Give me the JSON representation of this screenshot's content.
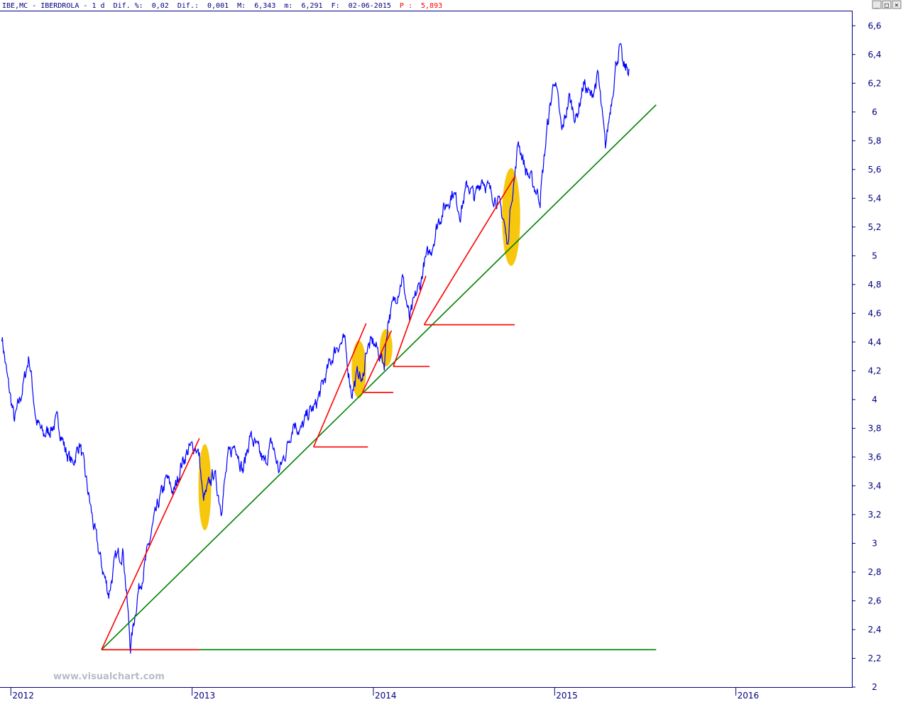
{
  "header": {
    "symbol": "IBE,MC",
    "name": "IBERDROLA",
    "period": "1 d",
    "pct_label": "Dif. %:",
    "pct_value": "0,02",
    "dif_label": "Dif.:",
    "dif_value": "0,001",
    "max_label": "M:",
    "max_value": "6,343",
    "min_label": "m:",
    "min_value": "6,291",
    "date_label": "F:",
    "date_value": "02-06-2015",
    "price_label": "P :",
    "price_value": "5,893",
    "text_color": "#000080",
    "price_color": "#ff0000"
  },
  "window_buttons": [
    "_",
    "□",
    "×"
  ],
  "watermark": "www.visualchart.com",
  "colors": {
    "price_line": "#0000ff",
    "support_line": "#008000",
    "trend_line": "#ff0000",
    "highlight": "#f5c400",
    "axis": "#000080"
  },
  "chart_data": {
    "type": "line",
    "title": "IBE,MC - IBERDROLA - 1 d",
    "x_axis": {
      "ticks": [
        "2012",
        "2013",
        "2014",
        "2015",
        "2016"
      ],
      "range": [
        2011.94,
        2016.64
      ]
    },
    "y_axis": {
      "ticks": [
        "2",
        "2,2",
        "2,4",
        "2,6",
        "2,8",
        "3",
        "3,2",
        "3,4",
        "3,6",
        "3,8",
        "4",
        "4,2",
        "4,4",
        "4,6",
        "4,8",
        "5",
        "5,2",
        "5,4",
        "5,6",
        "5,8",
        "6",
        "6,2",
        "6,4",
        "6,6"
      ],
      "tick_values": [
        2.0,
        2.2,
        2.4,
        2.6,
        2.8,
        3.0,
        3.2,
        3.4,
        3.6,
        3.8,
        4.0,
        4.2,
        4.4,
        4.6,
        4.8,
        5.0,
        5.2,
        5.4,
        5.6,
        5.8,
        6.0,
        6.2,
        6.4,
        6.6
      ],
      "range": [
        2.0,
        6.7
      ]
    },
    "series": [
      {
        "x": [
          2011.95,
          2011.98,
          2012.02,
          2012.06,
          2012.1,
          2012.14,
          2012.18,
          2012.22,
          2012.26,
          2012.3,
          2012.34,
          2012.38,
          2012.42,
          2012.46,
          2012.5,
          2012.54,
          2012.58,
          2012.62,
          2012.66,
          2012.7,
          2012.74,
          2012.78,
          2012.82,
          2012.86,
          2012.9,
          2012.94,
          2012.98,
          2013.02,
          2013.04,
          2013.06,
          2013.08,
          2013.12,
          2013.16,
          2013.2,
          2013.24,
          2013.28,
          2013.32,
          2013.36,
          2013.4,
          2013.44,
          2013.48,
          2013.52,
          2013.56,
          2013.6,
          2013.64,
          2013.68,
          2013.72,
          2013.76,
          2013.8,
          2013.84,
          2013.88,
          2013.92,
          2013.94,
          2013.96,
          2014.0,
          2014.04,
          2014.06,
          2014.08,
          2014.12,
          2014.16,
          2014.2,
          2014.24,
          2014.26,
          2014.28,
          2014.32,
          2014.36,
          2014.4,
          2014.44,
          2014.48,
          2014.52,
          2014.56,
          2014.6,
          2014.64,
          2014.68,
          2014.72,
          2014.74,
          2014.76,
          2014.78,
          2014.8,
          2014.84,
          2014.88,
          2014.92,
          2014.96,
          2015.0,
          2015.04,
          2015.08,
          2015.12,
          2015.16,
          2015.2,
          2015.24,
          2015.28,
          2015.32,
          2015.34,
          2015.36,
          2015.38,
          2015.41
        ],
        "values": [
          4.45,
          4.15,
          3.85,
          4.05,
          4.3,
          3.85,
          3.75,
          3.8,
          3.85,
          3.65,
          3.55,
          3.7,
          3.4,
          3.1,
          2.85,
          2.65,
          2.9,
          2.95,
          2.28,
          2.65,
          2.85,
          3.1,
          3.3,
          3.45,
          3.35,
          3.55,
          3.65,
          3.68,
          3.6,
          3.3,
          3.35,
          3.5,
          3.25,
          3.6,
          3.7,
          3.5,
          3.75,
          3.65,
          3.55,
          3.7,
          3.5,
          3.65,
          3.85,
          3.78,
          3.9,
          3.95,
          4.1,
          4.25,
          4.38,
          4.4,
          4.05,
          4.2,
          4.1,
          4.35,
          4.4,
          4.3,
          4.25,
          4.55,
          4.7,
          4.85,
          4.55,
          4.75,
          4.8,
          4.95,
          5.05,
          5.25,
          5.35,
          5.45,
          5.3,
          5.5,
          5.4,
          5.55,
          5.45,
          5.4,
          5.25,
          5.05,
          5.4,
          5.55,
          5.8,
          5.6,
          5.5,
          5.4,
          5.9,
          6.25,
          5.85,
          6.1,
          5.95,
          6.2,
          6.1,
          6.25,
          5.75,
          6.15,
          6.35,
          6.45,
          6.3,
          6.3
        ]
      }
    ],
    "trend_lines": [
      {
        "color": "green",
        "from": [
          2012.5,
          2.26
        ],
        "to": [
          2015.56,
          6.05
        ]
      },
      {
        "color": "green",
        "from": [
          2012.5,
          2.26
        ],
        "to": [
          2015.56,
          2.26
        ]
      },
      {
        "color": "red",
        "from": [
          2012.5,
          2.26
        ],
        "to": [
          2013.04,
          2.26
        ]
      },
      {
        "color": "red",
        "from": [
          2012.5,
          2.26
        ],
        "to": [
          2013.04,
          3.73
        ]
      },
      {
        "color": "red",
        "from": [
          2013.67,
          3.67
        ],
        "to": [
          2013.96,
          4.53
        ]
      },
      {
        "color": "red",
        "from": [
          2013.67,
          3.67
        ],
        "to": [
          2013.97,
          3.67
        ]
      },
      {
        "color": "red",
        "from": [
          2013.94,
          4.05
        ],
        "to": [
          2014.1,
          4.48
        ]
      },
      {
        "color": "red",
        "from": [
          2013.94,
          4.05
        ],
        "to": [
          2014.11,
          4.05
        ]
      },
      {
        "color": "red",
        "from": [
          2014.11,
          4.23
        ],
        "to": [
          2014.29,
          4.86
        ]
      },
      {
        "color": "red",
        "from": [
          2014.11,
          4.23
        ],
        "to": [
          2014.31,
          4.23
        ]
      },
      {
        "color": "red",
        "from": [
          2014.28,
          4.52
        ],
        "to": [
          2014.78,
          5.55
        ]
      },
      {
        "color": "red",
        "from": [
          2014.28,
          4.52
        ],
        "to": [
          2014.78,
          4.52
        ]
      }
    ],
    "highlights": [
      {
        "cx": 2013.07,
        "cy": 3.39,
        "rx": 0.035,
        "ry": 0.3
      },
      {
        "cx": 2013.92,
        "cy": 4.21,
        "rx": 0.04,
        "ry": 0.2
      },
      {
        "cx": 2014.07,
        "cy": 4.36,
        "rx": 0.035,
        "ry": 0.13
      },
      {
        "cx": 2014.76,
        "cy": 5.27,
        "rx": 0.05,
        "ry": 0.34
      }
    ],
    "grid": false,
    "legend": "none"
  }
}
